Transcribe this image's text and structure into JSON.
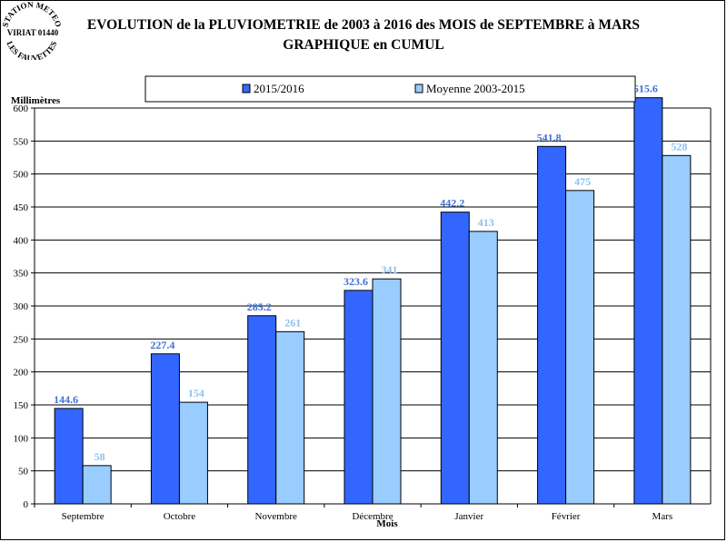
{
  "header": {
    "title_line1": "EVOLUTION de la PLUVIOMETRIE de 2003 à 2016 des MOIS de SEPTEMBRE à MARS",
    "title_line2": "GRAPHIQUE en CUMUL"
  },
  "logo": {
    "top_text": "STATION METEO",
    "middle_text": "VIRIAT 01440",
    "bottom_text": "LES FAUVETTES"
  },
  "chart_data": {
    "type": "bar",
    "title": "EVOLUTION de la PLUVIOMETRIE de 2003 à 2016 des MOIS de SEPTEMBRE à MARS — GRAPHIQUE en CUMUL",
    "xlabel": "Mois",
    "ylabel": "Millimètres",
    "ylim": [
      0,
      600
    ],
    "yticks": [
      0,
      50,
      100,
      150,
      200,
      250,
      300,
      350,
      400,
      450,
      500,
      550,
      600
    ],
    "grid": true,
    "legend_position": "top",
    "categories": [
      "Septembre",
      "Octobre",
      "Novembre",
      "Décembre",
      "Janvier",
      "Février",
      "Mars"
    ],
    "series": [
      {
        "name": "2015/2016",
        "color": "#3366ff",
        "label_color": "#3f6fd8",
        "values": [
          144.6,
          227.4,
          285.2,
          323.6,
          442.2,
          541.8,
          615.6
        ]
      },
      {
        "name": "Moyenne 2003-2015",
        "color": "#99ccff",
        "label_color": "#8cc0ee",
        "values": [
          58,
          154,
          261,
          341,
          413,
          475,
          528
        ]
      }
    ]
  }
}
